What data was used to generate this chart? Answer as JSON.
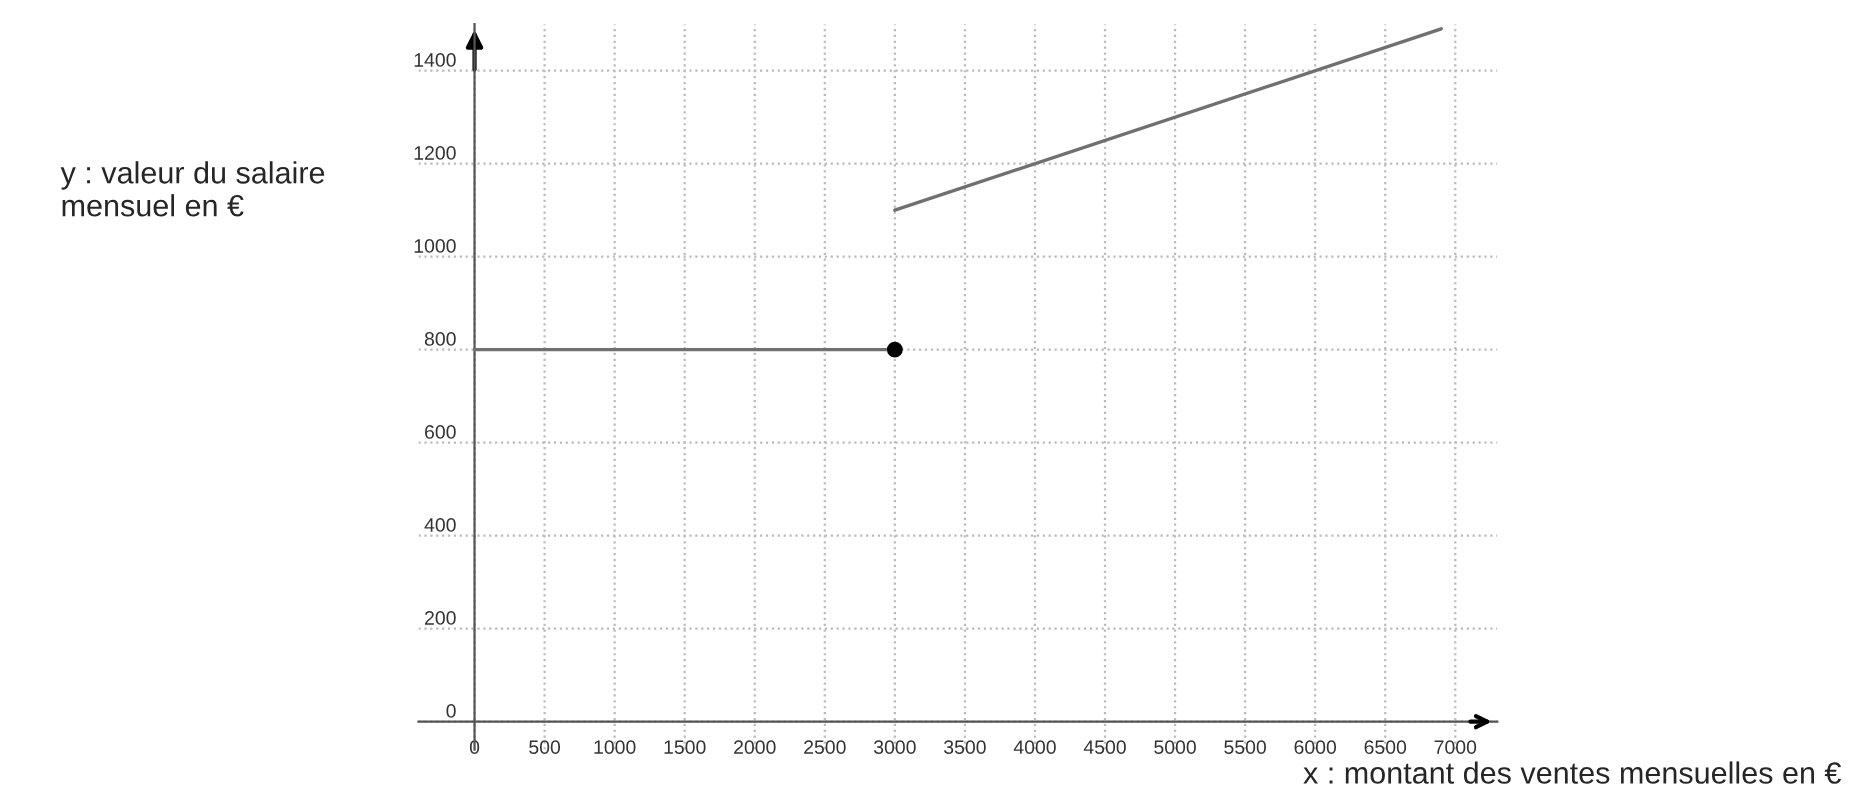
{
  "chart_data": {
    "type": "line",
    "xlabel": "x : montant des ventes mensuelles en €",
    "ylabel": "y : valeur du salaire mensuel en €",
    "xlim": [
      -400,
      7300
    ],
    "ylim": [
      -60,
      1500
    ],
    "xticks": [
      0,
      500,
      1000,
      1500,
      2000,
      2500,
      3000,
      3500,
      4000,
      4500,
      5000,
      5500,
      6000,
      6500,
      7000
    ],
    "yticks": [
      0,
      200,
      400,
      600,
      800,
      1000,
      1200,
      1400
    ],
    "grid": true,
    "series": [
      {
        "color": "#707070",
        "x": [
          0,
          3000
        ],
        "values": [
          800,
          800
        ]
      },
      {
        "type": "scatter",
        "color": "#000000",
        "x": [
          3000
        ],
        "values": [
          800
        ],
        "marker": "circle"
      },
      {
        "color": "#707070",
        "x": [
          3000,
          6900
        ],
        "values": [
          1100,
          1490
        ]
      }
    ]
  }
}
